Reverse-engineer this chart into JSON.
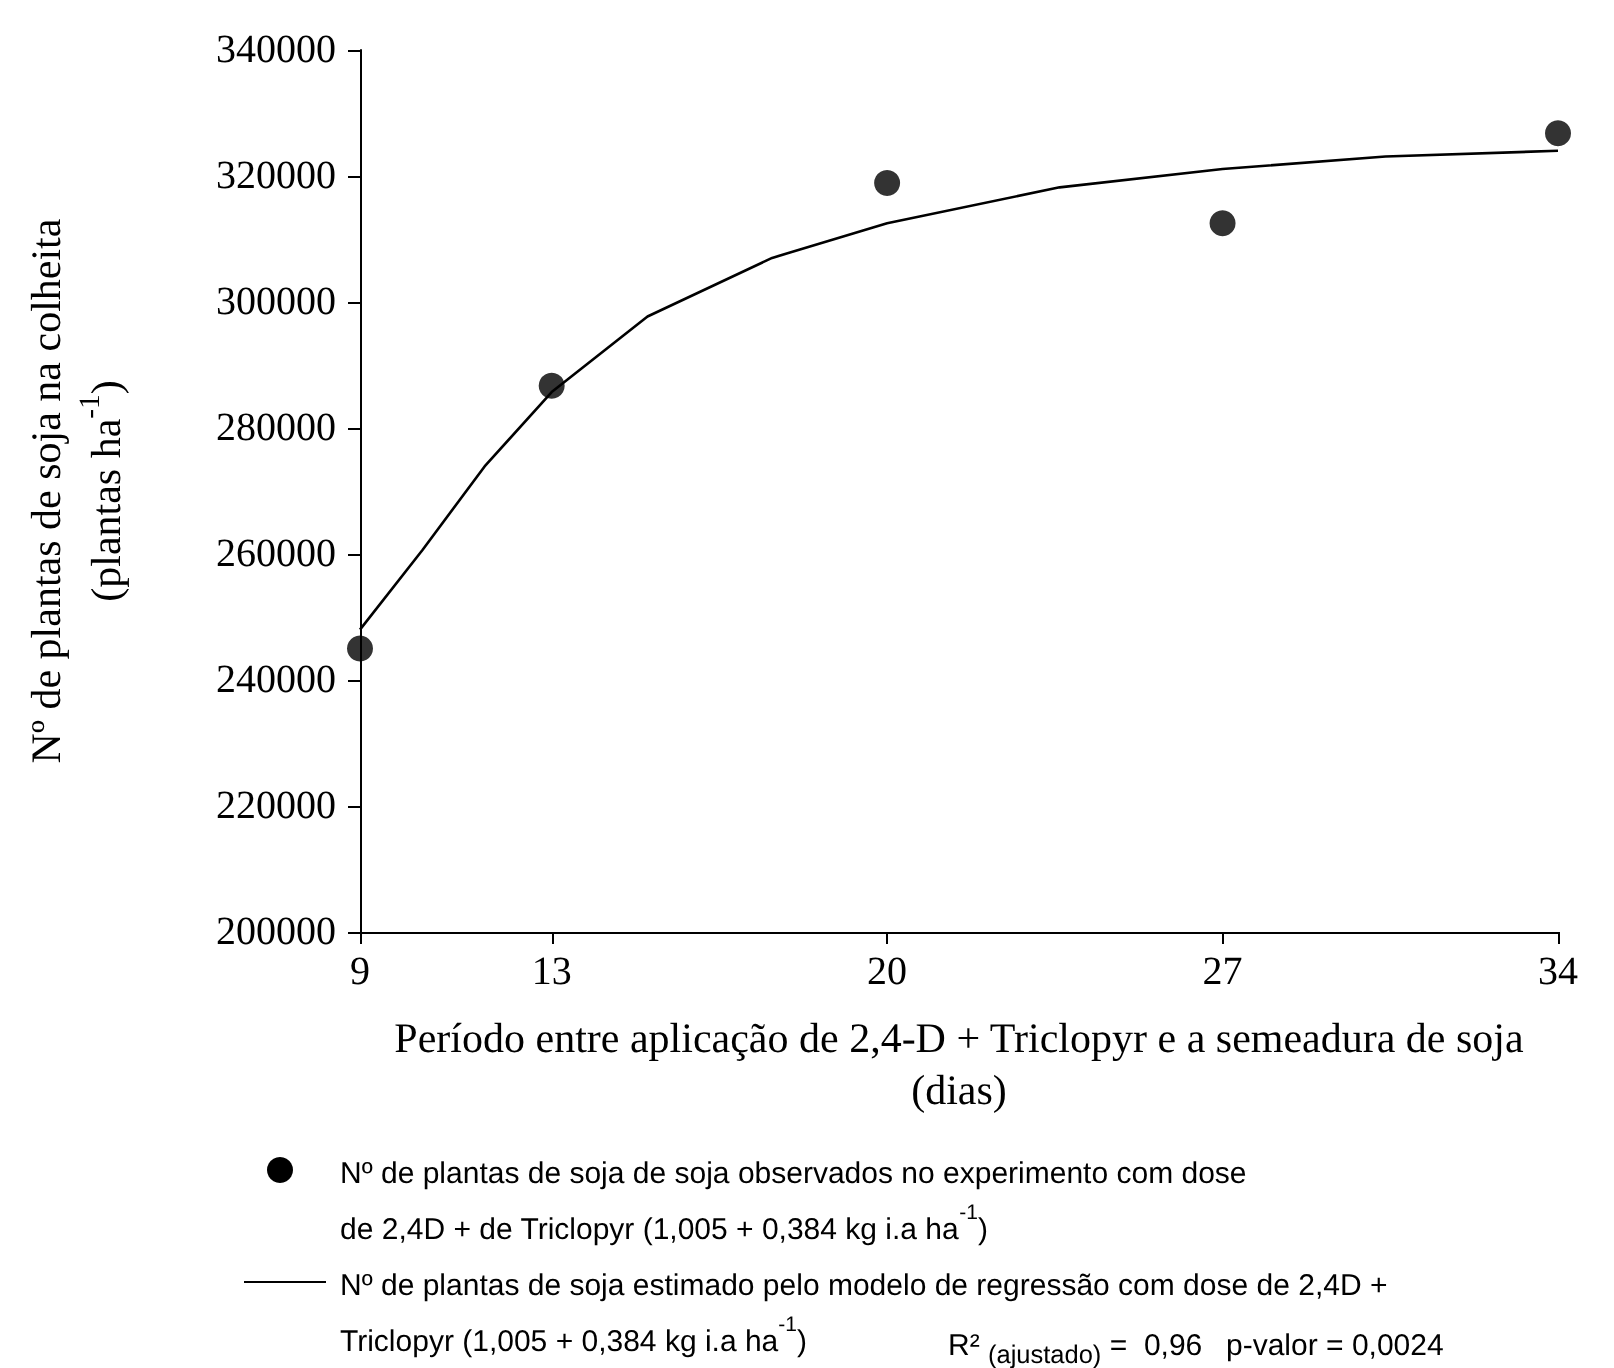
{
  "chart_data": {
    "type": "scatter",
    "xlabel": "Período entre aplicação de 2,4-D + Triclopyr e a semeadura de soja\n(dias)",
    "ylabel": "Nº de plantas de soja na colheita\n(plantas ha$^{-1}$)",
    "xlim": [
      9,
      34
    ],
    "xticks": [
      9,
      13,
      20,
      27,
      34
    ],
    "ylim": [
      200000,
      340000
    ],
    "yticks": [
      200000,
      220000,
      240000,
      260000,
      280000,
      300000,
      320000,
      340000
    ],
    "grid": false,
    "legend": "bottom",
    "series": [
      {
        "name": "Nº de plantas de soja de soja observados no experimento com dose\nde 2,4D + de Triclopyr (1,005 + 0,384 kg i.a ha$^{-1}$)",
        "color": "#000000",
        "marker": "circle",
        "x": [
          9,
          13,
          20,
          27,
          34
        ],
        "values": [
          245000,
          286700,
          318900,
          312500,
          326800
        ]
      },
      {
        "type": "line",
        "name": "Nº de plantas de soja estimado pelo modelo de regressão com dose de 2,4D +\nTriclopyr (1,005 + 0,384 kg i.a ha$^{-1}$)",
        "color": "#000000",
        "marker": "none",
        "line_style": "solid",
        "x": [
          9,
          10.3,
          11.6,
          13,
          15,
          17.6,
          20,
          23.6,
          27,
          30.4,
          34
        ],
        "values": [
          248000,
          260600,
          273900,
          285700,
          297700,
          307000,
          312500,
          318200,
          321100,
          323100,
          324000
        ]
      }
    ],
    "annotations": [
      "R² $_{(ajustado)}$ =  0,96",
      "p-valor = 0,0024"
    ]
  }
}
